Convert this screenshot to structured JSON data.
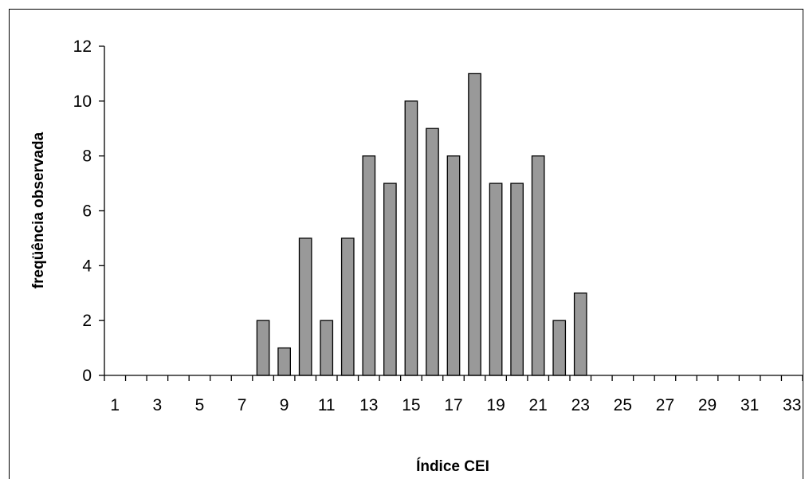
{
  "chart_data": {
    "type": "bar",
    "title": "",
    "xlabel": "Índice CEI",
    "ylabel": "freqüência observada",
    "categories": [
      1,
      2,
      3,
      4,
      5,
      6,
      7,
      8,
      9,
      10,
      11,
      12,
      13,
      14,
      15,
      16,
      17,
      18,
      19,
      20,
      21,
      22,
      23,
      24,
      25,
      26,
      27,
      28,
      29,
      30,
      31,
      32,
      33
    ],
    "x_tick_labels": [
      "1",
      "3",
      "5",
      "7",
      "9",
      "11",
      "13",
      "15",
      "17",
      "19",
      "21",
      "23",
      "25",
      "27",
      "29",
      "31",
      "33"
    ],
    "values": [
      0,
      0,
      0,
      0,
      0,
      0,
      0,
      2,
      1,
      5,
      2,
      5,
      8,
      7,
      10,
      9,
      8,
      11,
      7,
      7,
      8,
      2,
      3,
      0,
      0,
      0,
      0,
      0,
      0,
      0,
      0,
      0,
      0
    ],
    "ylim": [
      0,
      12
    ],
    "y_ticks": [
      0,
      2,
      4,
      6,
      8,
      10,
      12
    ],
    "bar_color": "#999999",
    "bar_edge_color": "#000000",
    "grid": false,
    "legend": "none"
  }
}
